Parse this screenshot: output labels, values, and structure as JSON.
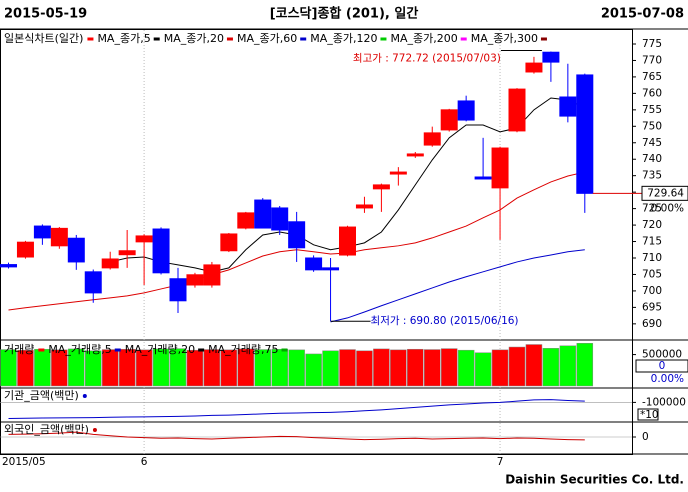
{
  "header": {
    "start": "2015-05-19",
    "title": "[코스닥]종합 (201), 일간",
    "end": "2015-07-08",
    "footer": "Daishin Securities Co. Ltd."
  },
  "chart_data": [
    {
      "type": "candlestick",
      "title": "일본식차트(일간)",
      "title_color": "#ff0000",
      "up_color": "#ff0000",
      "down_color": "#0000ff",
      "categories": [
        "2015/05",
        null,
        null,
        null,
        null,
        null,
        null,
        null,
        "6",
        null,
        null,
        null,
        null,
        null,
        null,
        null,
        null,
        null,
        null,
        null,
        null,
        null,
        null,
        null,
        null,
        null,
        null,
        null,
        null,
        "7",
        null,
        null,
        null,
        null,
        null
      ],
      "open": [
        708.0,
        710.3,
        719.7,
        713.7,
        716.0,
        705.8,
        707.0,
        711.0,
        714.9,
        718.8,
        703.7,
        701.8,
        701.8,
        712.2,
        719.1,
        727.6,
        725.2,
        721.0,
        710.0,
        707.0,
        710.9,
        725.2,
        731.0,
        735.5,
        741.0,
        744.3,
        748.9,
        757.7,
        734.6,
        731.3,
        748.6,
        766.5,
        772.5,
        758.9,
        765.6
      ],
      "high": [
        708.6,
        715.2,
        720.2,
        719.4,
        717.0,
        706.5,
        711.9,
        718.5,
        717.2,
        719.3,
        707.0,
        705.5,
        708.8,
        717.6,
        724.0,
        728.2,
        725.8,
        724.0,
        710.8,
        710.0,
        719.8,
        728.6,
        732.6,
        737.6,
        742.2,
        749.9,
        755.3,
        759.3,
        746.5,
        743.8,
        761.6,
        771.1,
        772.72,
        769.0,
        766.0
      ],
      "low": [
        706.8,
        709.8,
        714.0,
        712.8,
        706.4,
        696.4,
        706.5,
        707.0,
        701.8,
        705.0,
        693.3,
        701.0,
        701.0,
        711.8,
        718.7,
        719.0,
        717.0,
        708.8,
        705.8,
        690.8,
        710.5,
        723.7,
        724.0,
        732.0,
        740.4,
        743.8,
        748.4,
        751.5,
        734.0,
        715.5,
        748.2,
        766.0,
        763.5,
        751.2,
        723.7
      ],
      "close": [
        707.3,
        714.8,
        716.1,
        719.0,
        708.8,
        699.4,
        709.7,
        712.2,
        716.7,
        705.5,
        697.0,
        704.9,
        707.9,
        717.3,
        723.7,
        719.1,
        718.5,
        713.1,
        706.4,
        706.4,
        719.4,
        726.1,
        732.2,
        736.1,
        741.6,
        748.0,
        755.0,
        751.9,
        734.0,
        743.4,
        761.3,
        769.2,
        769.5,
        753.1,
        729.64
      ],
      "series": [
        {
          "name": "MA_종가,5",
          "color": "#000000",
          "values": [
            null,
            null,
            null,
            null,
            null,
            null,
            708.8,
            710.0,
            710.3,
            708.8,
            707.9,
            707.0,
            705.8,
            707.0,
            712.5,
            717.0,
            717.9,
            717.0,
            714.0,
            712.5,
            713.4,
            714.6,
            717.9,
            724.6,
            732.2,
            739.8,
            746.5,
            750.4,
            750.4,
            748.3,
            749.5,
            755.0,
            758.6,
            758.0,
            755.6
          ]
        },
        {
          "name": "MA_종가,20",
          "color": "#dd0000",
          "values": [
            694.2,
            694.9,
            695.5,
            696.1,
            696.7,
            697.3,
            697.9,
            698.5,
            699.4,
            700.6,
            701.8,
            703.4,
            704.9,
            706.4,
            708.5,
            710.6,
            711.9,
            712.5,
            711.9,
            711.2,
            711.5,
            712.5,
            713.1,
            713.7,
            714.6,
            716.1,
            717.9,
            719.7,
            722.2,
            724.6,
            728.2,
            730.7,
            733.1,
            734.9,
            736.1
          ]
        },
        {
          "name": "MA_종가,60",
          "color": "#0000cc",
          "values": [
            null,
            null,
            null,
            null,
            null,
            null,
            null,
            null,
            null,
            null,
            null,
            null,
            null,
            null,
            null,
            null,
            null,
            null,
            null,
            690.6,
            691.8,
            693.6,
            695.5,
            697.3,
            699.1,
            700.9,
            702.7,
            704.3,
            705.8,
            707.3,
            708.8,
            710.0,
            710.9,
            711.9,
            712.5
          ]
        },
        {
          "name": "MA_종가,120",
          "color": "#00cc00"
        },
        {
          "name": "MA_종가,200",
          "color": "#ff00ff"
        },
        {
          "name": "MA_종가,300",
          "color": "#880000"
        }
      ],
      "ylim": [
        685.7,
        779.25
      ],
      "yticks": [
        690,
        695,
        700,
        705,
        710,
        715,
        720,
        725,
        730,
        735,
        740,
        745,
        750,
        755,
        760,
        765,
        770,
        775
      ],
      "high_label": "최고가 : 772.72 (2015/07/03)",
      "low_label": "최저가 : 690.80 (2015/06/16)",
      "last_label": "729.64",
      "change_label": "0.00%"
    },
    {
      "type": "bar",
      "title": "거래량",
      "title_color": "#ff0000",
      "up_color": "#ff0000",
      "down_color": "#00ff00",
      "values": [
        580000,
        570000,
        585000,
        575000,
        590000,
        560000,
        580000,
        585000,
        575000,
        590000,
        595000,
        570000,
        580000,
        575000,
        590000,
        580000,
        585000,
        575000,
        510000,
        560000,
        580000,
        560000,
        590000,
        575000,
        585000,
        580000,
        595000,
        570000,
        530000,
        575000,
        620000,
        660000,
        600000,
        640000,
        680000
      ],
      "series": [
        {
          "name": "MA_거래량,5",
          "color": "#0000cc"
        },
        {
          "name": "MA_거래량,20",
          "color": "#000000"
        },
        {
          "name": "MA_거래량,75",
          "color": "#00aa00"
        }
      ],
      "ylim": [
        0,
        700000
      ],
      "yticks": [
        500000
      ],
      "last_label": "0",
      "change_label": "0.00%"
    },
    {
      "type": "line",
      "title": "기관_금액(백만)",
      "color": "#0000cc",
      "values": [
        -152000,
        -151000,
        -150500,
        -150000,
        -149500,
        -149000,
        -148000,
        -147000,
        -146500,
        -146000,
        -145000,
        -144000,
        -142000,
        -141000,
        -139000,
        -137000,
        -135000,
        -134000,
        -133000,
        -132000,
        -130000,
        -127000,
        -124000,
        -120000,
        -116000,
        -112000,
        -108000,
        -105000,
        -102000,
        -100000,
        -96000,
        -92000,
        -91000,
        -94000,
        -96000
      ],
      "ylim": [
        -160000,
        -60000
      ],
      "yticks": [
        -100000
      ],
      "unit_label": "*10"
    },
    {
      "type": "line",
      "title": "외국인_금액(백만)",
      "color": "#cc0000",
      "values": [
        8000,
        9000,
        10000,
        12000,
        15000,
        8000,
        4000,
        0,
        -2000,
        -4000,
        -3000,
        -5000,
        -6000,
        -4000,
        -2000,
        0,
        2000,
        1000,
        -2000,
        -4000,
        -6000,
        -8000,
        -7000,
        -5000,
        -4000,
        -6000,
        -5000,
        -4000,
        -3000,
        -5000,
        -3000,
        -4000,
        -6000,
        -8000,
        -9000
      ],
      "ylim": [
        -40000,
        40000
      ],
      "yticks": [
        0
      ]
    }
  ]
}
